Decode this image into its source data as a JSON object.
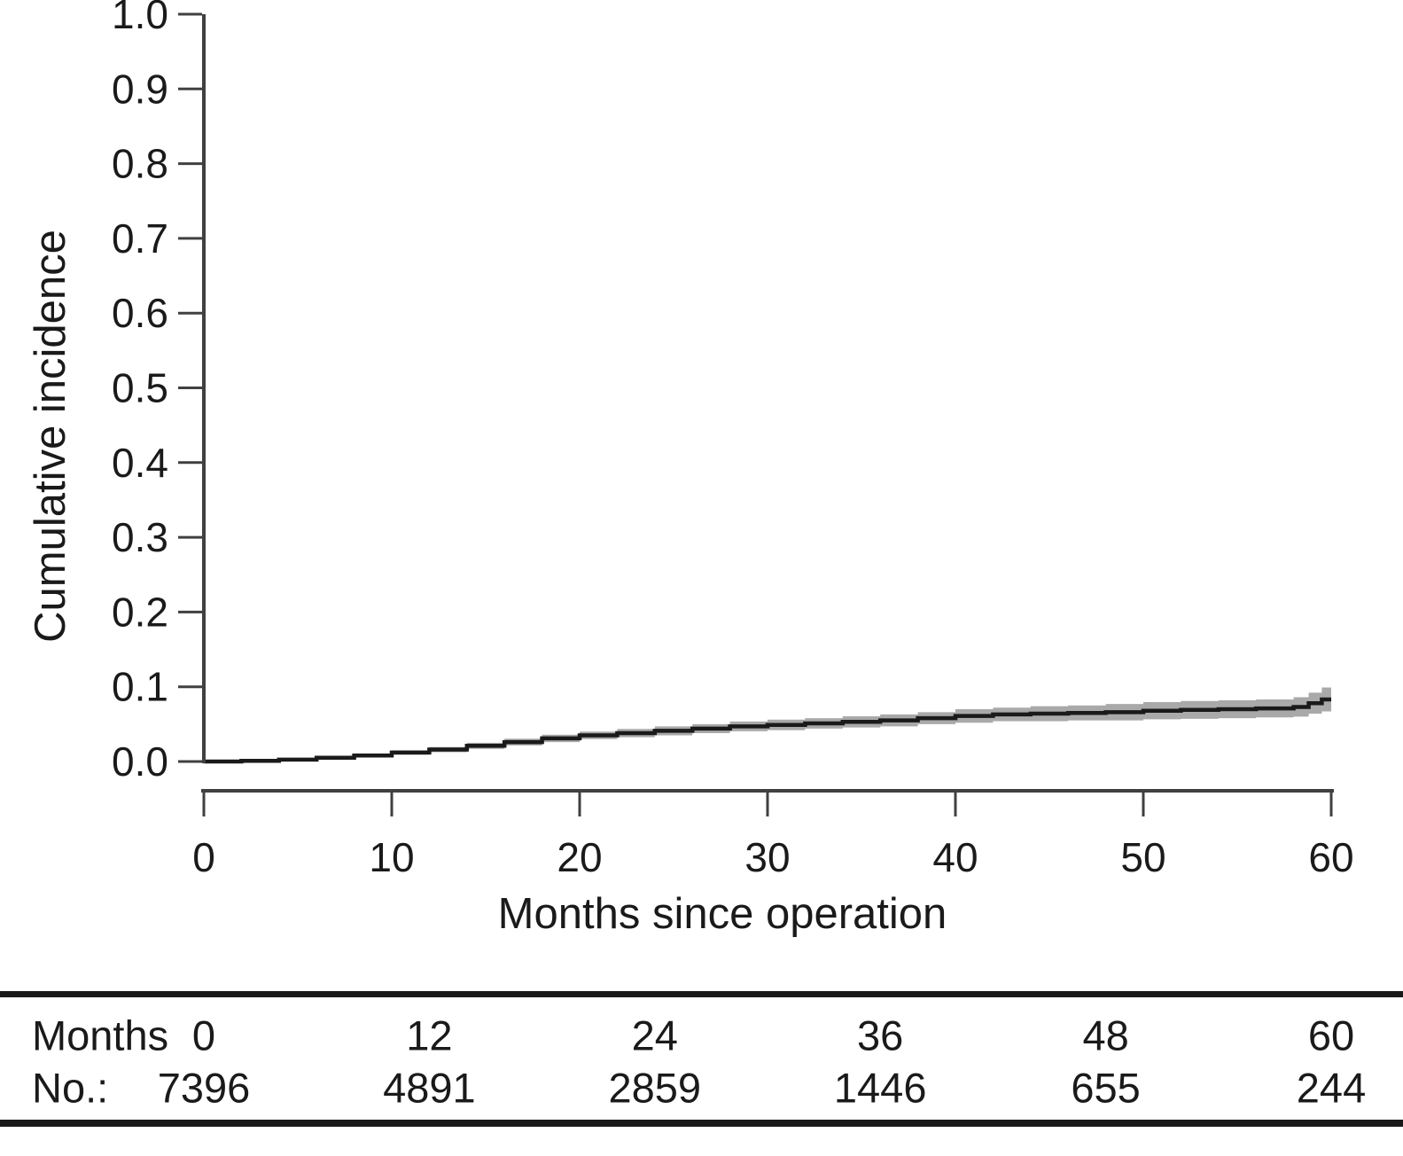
{
  "figure": {
    "background": "#ffffff",
    "text_color": "#1a1a1a",
    "axis_color": "#404040",
    "curve_color": "#1a1a1a",
    "band_color": "#a9a9a9"
  },
  "chart_data": {
    "type": "line",
    "step_mode": "step-after",
    "title": "",
    "xlabel": "Months since operation",
    "ylabel": "Cumulative incidence",
    "xlim": [
      0,
      60
    ],
    "ylim": [
      0.0,
      1.0
    ],
    "xticks": [
      "0",
      "10",
      "20",
      "30",
      "40",
      "50",
      "60"
    ],
    "xtick_values": [
      0,
      10,
      20,
      30,
      40,
      50,
      60
    ],
    "yticks": [
      "0.0",
      "0.1",
      "0.2",
      "0.3",
      "0.4",
      "0.5",
      "0.6",
      "0.7",
      "0.8",
      "0.9",
      "1.0"
    ],
    "ytick_values": [
      0.0,
      0.1,
      0.2,
      0.3,
      0.4,
      0.5,
      0.6,
      0.7,
      0.8,
      0.9,
      1.0
    ],
    "grid": false,
    "legend": "none",
    "series": [
      {
        "name": "Cumulative incidence",
        "x": [
          0,
          2,
          4,
          6,
          8,
          10,
          12,
          14,
          16,
          18,
          20,
          22,
          24,
          26,
          28,
          30,
          32,
          34,
          36,
          38,
          40,
          42,
          44,
          46,
          48,
          50,
          52,
          54,
          56,
          58,
          58.8,
          59.5
        ],
        "y": [
          0.0,
          0.001,
          0.0025,
          0.005,
          0.008,
          0.012,
          0.016,
          0.021,
          0.026,
          0.031,
          0.035,
          0.038,
          0.041,
          0.044,
          0.047,
          0.049,
          0.051,
          0.053,
          0.055,
          0.058,
          0.061,
          0.063,
          0.064,
          0.065,
          0.066,
          0.068,
          0.069,
          0.07,
          0.071,
          0.073,
          0.078,
          0.083
        ]
      },
      {
        "name": "95% CI upper",
        "x": [
          0,
          2,
          4,
          6,
          8,
          10,
          12,
          14,
          16,
          18,
          20,
          22,
          24,
          26,
          28,
          30,
          32,
          34,
          36,
          38,
          40,
          42,
          44,
          46,
          48,
          50,
          52,
          54,
          56,
          58,
          58.8,
          59.5
        ],
        "y": [
          0.0,
          0.002,
          0.004,
          0.007,
          0.0105,
          0.015,
          0.0195,
          0.025,
          0.0305,
          0.036,
          0.04,
          0.0435,
          0.047,
          0.05,
          0.0535,
          0.056,
          0.058,
          0.0605,
          0.063,
          0.066,
          0.07,
          0.072,
          0.074,
          0.075,
          0.077,
          0.0795,
          0.081,
          0.082,
          0.083,
          0.086,
          0.092,
          0.099
        ]
      },
      {
        "name": "95% CI lower",
        "x": [
          0,
          2,
          4,
          6,
          8,
          10,
          12,
          14,
          16,
          18,
          20,
          22,
          24,
          26,
          28,
          30,
          32,
          34,
          36,
          38,
          40,
          42,
          44,
          46,
          48,
          50,
          52,
          54,
          56,
          58,
          58.8,
          59.5
        ],
        "y": [
          0.0,
          0.0,
          0.001,
          0.003,
          0.0055,
          0.009,
          0.0125,
          0.017,
          0.0215,
          0.026,
          0.03,
          0.0325,
          0.035,
          0.038,
          0.0405,
          0.042,
          0.044,
          0.0455,
          0.047,
          0.05,
          0.052,
          0.054,
          0.054,
          0.055,
          0.055,
          0.0565,
          0.057,
          0.058,
          0.059,
          0.06,
          0.064,
          0.067
        ]
      }
    ]
  },
  "risk_table": {
    "rows": [
      {
        "label": "Months",
        "values": [
          "0",
          "12",
          "24",
          "36",
          "48",
          "60"
        ]
      },
      {
        "label": "No.:",
        "values": [
          "7396",
          "4891",
          "2859",
          "1446",
          "655",
          "244"
        ]
      }
    ],
    "value_months": [
      0,
      12,
      24,
      36,
      48,
      60
    ]
  }
}
